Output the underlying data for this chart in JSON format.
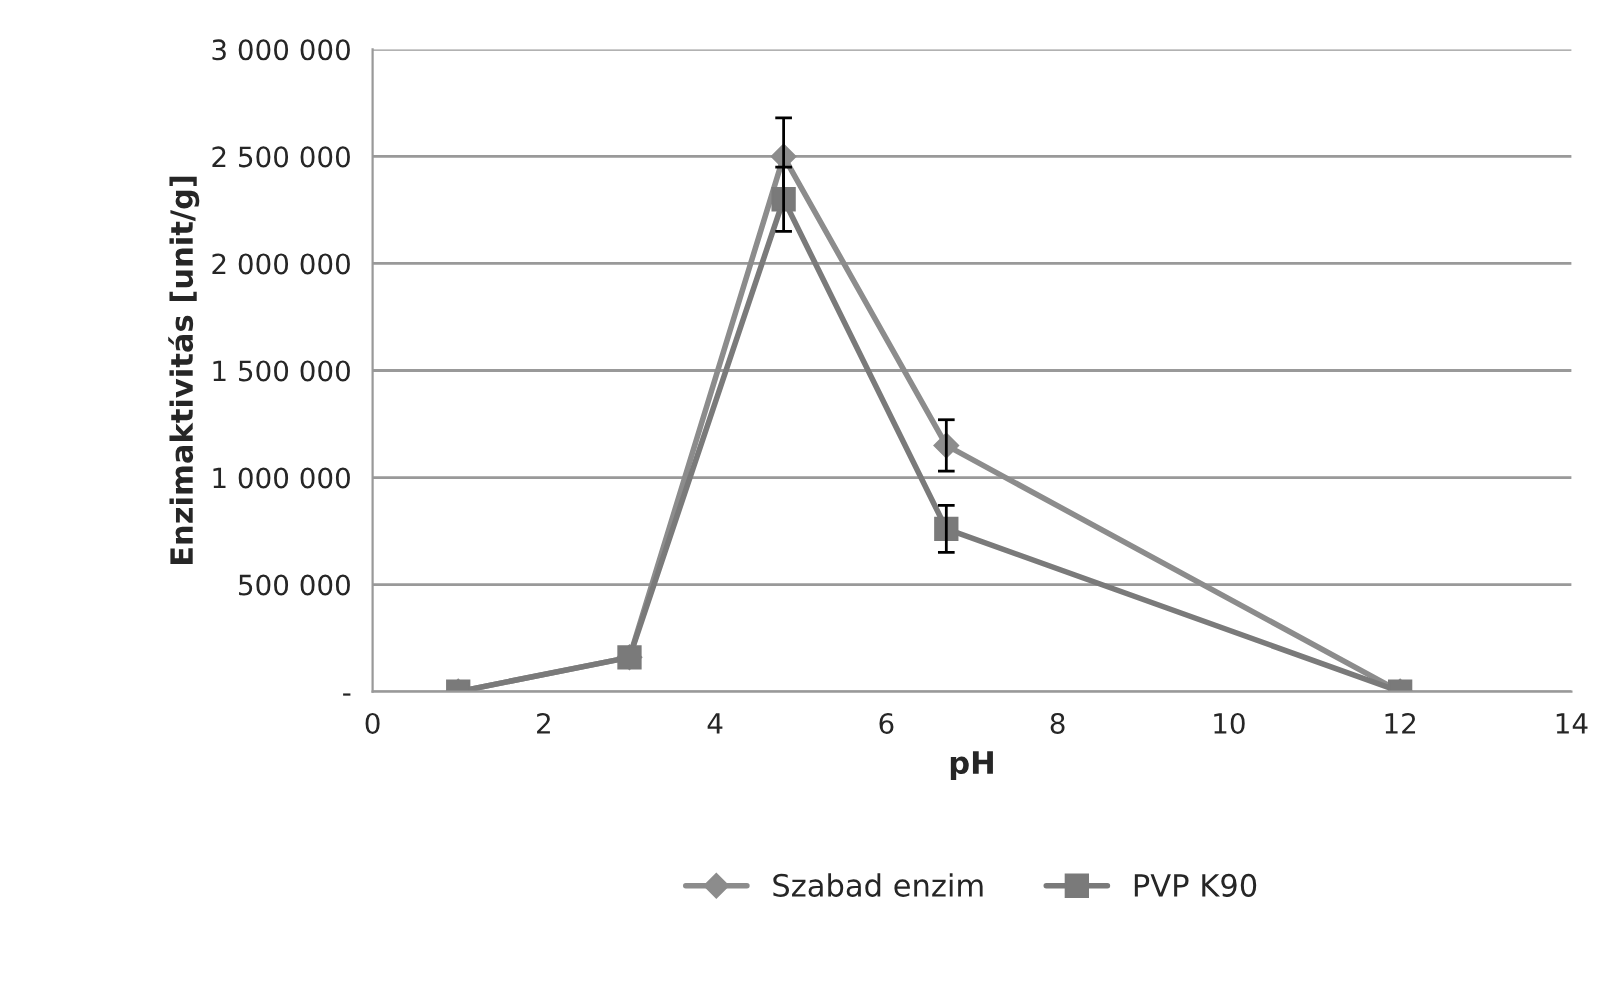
{
  "chart_data": {
    "type": "line",
    "xlabel": "pH",
    "ylabel": "Enzimaktivitás [unit/g]",
    "x": [
      1.0,
      3.0,
      4.8,
      6.7,
      12.0
    ],
    "series": [
      {
        "name": "Szabad enzim",
        "color": "#8c8c8c",
        "marker": "diamond",
        "values": [
          0,
          160000,
          2500000,
          1150000,
          0
        ],
        "errors": [
          null,
          null,
          180000,
          120000,
          null
        ]
      },
      {
        "name": "PVP K90",
        "color": "#7a7a7a",
        "marker": "square",
        "values": [
          0,
          160000,
          2300000,
          760000,
          0
        ],
        "errors": [
          null,
          null,
          150000,
          110000,
          null
        ]
      }
    ],
    "xlim": [
      0,
      14
    ],
    "xticks": [
      0,
      2,
      4,
      6,
      8,
      10,
      12,
      14
    ],
    "ylim": [
      0,
      3000000
    ],
    "yticks": [
      {
        "value": 0,
        "label": "-"
      },
      {
        "value": 500000,
        "label": "500 000"
      },
      {
        "value": 1000000,
        "label": "1 000 000"
      },
      {
        "value": 1500000,
        "label": "1 500 000"
      },
      {
        "value": 2000000,
        "label": "2 000 000"
      },
      {
        "value": 2500000,
        "label": "2 500 000"
      },
      {
        "value": 3000000,
        "label": "3 000 000"
      }
    ],
    "grid": "y",
    "legend": "bottom",
    "line_style": "solid"
  }
}
